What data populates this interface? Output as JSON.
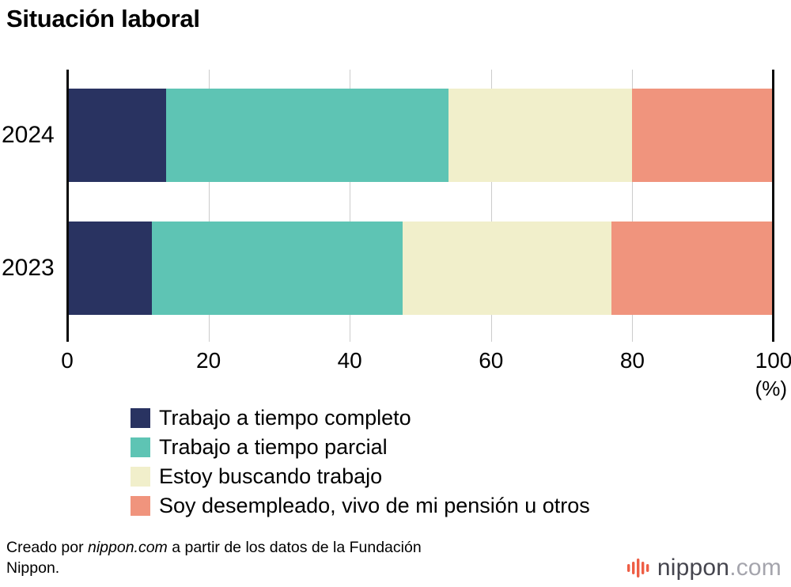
{
  "title": "Situación laboral",
  "chart_data": {
    "type": "bar",
    "orientation": "horizontal",
    "stacked": true,
    "title": "Situación laboral",
    "categories": [
      "2024",
      "2023"
    ],
    "series": [
      {
        "name": "Trabajo a tiempo completo",
        "color": "#293361",
        "values": [
          14,
          12
        ]
      },
      {
        "name": "Trabajo a tiempo parcial",
        "color": "#5ec4b4",
        "values": [
          40,
          35.5
        ]
      },
      {
        "name": "Estoy buscando trabajo",
        "color": "#f1efcb",
        "values": [
          26,
          29.5
        ]
      },
      {
        "name": "Soy desempleado, vivo de mi pensión u otros",
        "color": "#f0947d",
        "values": [
          20,
          23
        ]
      }
    ],
    "xlim": [
      0,
      100
    ],
    "x_ticks": [
      0,
      20,
      40,
      60,
      80,
      100
    ],
    "x_unit": "(%)",
    "grid": "vertical-light",
    "legend_position": "bottom-left",
    "gridline_color": "#cccccc",
    "axis_color": "#0a0a0a"
  },
  "footer": {
    "credit_prefix": "Creado por ",
    "credit_source": "nippon.com",
    "credit_suffix": " a partir de los datos de la Fundación Nippon.",
    "logo": {
      "icon": "soundwave-icon",
      "icon_color": "#ee5e45",
      "text": "nippon",
      "suffix": ".com"
    }
  }
}
